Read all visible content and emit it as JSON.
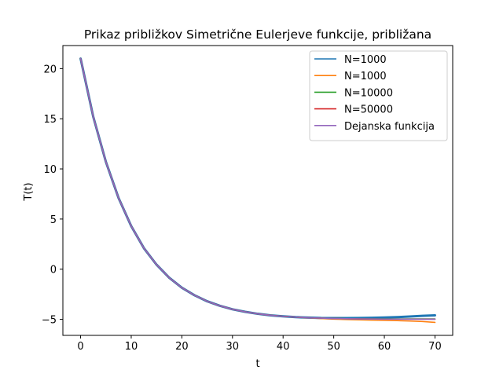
{
  "chart_data": {
    "type": "line",
    "title": "Prikaz približkov Simetrične Eulerjeve funkcije, približana",
    "xlabel": "t",
    "ylabel": "T(t)",
    "xlim": [
      -3.5,
      73.5
    ],
    "ylim": [
      -6.6,
      22.3
    ],
    "xticks": [
      0,
      10,
      20,
      30,
      40,
      50,
      60,
      70
    ],
    "yticks": [
      -5,
      0,
      5,
      10,
      15,
      20
    ],
    "grid": false,
    "legend_position": "top-right",
    "x": [
      0,
      2.5,
      5,
      7.5,
      10,
      12.5,
      15,
      17.5,
      20,
      22.5,
      25,
      27.5,
      30,
      32.5,
      35,
      37.5,
      40,
      42.5,
      45,
      47.5,
      50,
      52.5,
      55,
      57.5,
      60,
      62.5,
      65,
      67.5,
      70
    ],
    "series": [
      {
        "name": "N=1000",
        "color": "#1f77b4",
        "values": [
          21,
          15.2,
          10.7,
          7.1,
          4.3,
          2.1,
          0.45,
          -0.85,
          -1.85,
          -2.6,
          -3.2,
          -3.65,
          -4.0,
          -4.25,
          -4.45,
          -4.6,
          -4.7,
          -4.78,
          -4.83,
          -4.87,
          -4.88,
          -4.88,
          -4.87,
          -4.85,
          -4.82,
          -4.78,
          -4.72,
          -4.65,
          -4.6
        ]
      },
      {
        "name": "N=1000",
        "color": "#ff7f0e",
        "values": [
          21,
          15.2,
          10.7,
          7.1,
          4.3,
          2.1,
          0.45,
          -0.85,
          -1.85,
          -2.6,
          -3.2,
          -3.65,
          -4.0,
          -4.25,
          -4.45,
          -4.6,
          -4.7,
          -4.78,
          -4.85,
          -4.92,
          -4.98,
          -5.02,
          -5.05,
          -5.08,
          -5.1,
          -5.13,
          -5.17,
          -5.22,
          -5.3
        ]
      },
      {
        "name": "N=10000",
        "color": "#2ca02c",
        "values": [
          21,
          15.2,
          10.7,
          7.1,
          4.3,
          2.1,
          0.45,
          -0.85,
          -1.85,
          -2.6,
          -3.2,
          -3.65,
          -4.0,
          -4.25,
          -4.45,
          -4.6,
          -4.7,
          -4.78,
          -4.84,
          -4.88,
          -4.92,
          -4.94,
          -4.95,
          -4.96,
          -4.96,
          -4.96,
          -4.96,
          -4.96,
          -4.96
        ]
      },
      {
        "name": "N=50000",
        "color": "#d62728",
        "values": [
          21,
          15.2,
          10.7,
          7.1,
          4.3,
          2.1,
          0.45,
          -0.85,
          -1.85,
          -2.6,
          -3.2,
          -3.65,
          -4.0,
          -4.25,
          -4.45,
          -4.6,
          -4.7,
          -4.78,
          -4.84,
          -4.88,
          -4.92,
          -4.94,
          -4.96,
          -4.97,
          -4.98,
          -4.98,
          -4.99,
          -4.99,
          -4.99
        ]
      },
      {
        "name": "Dejanska funkcija",
        "color": "#9467bd",
        "values": [
          21,
          15.2,
          10.7,
          7.1,
          4.3,
          2.1,
          0.45,
          -0.85,
          -1.85,
          -2.6,
          -3.2,
          -3.65,
          -4.0,
          -4.25,
          -4.45,
          -4.6,
          -4.7,
          -4.78,
          -4.84,
          -4.88,
          -4.92,
          -4.94,
          -4.96,
          -4.97,
          -4.98,
          -4.98,
          -4.99,
          -4.99,
          -4.99
        ]
      }
    ]
  }
}
